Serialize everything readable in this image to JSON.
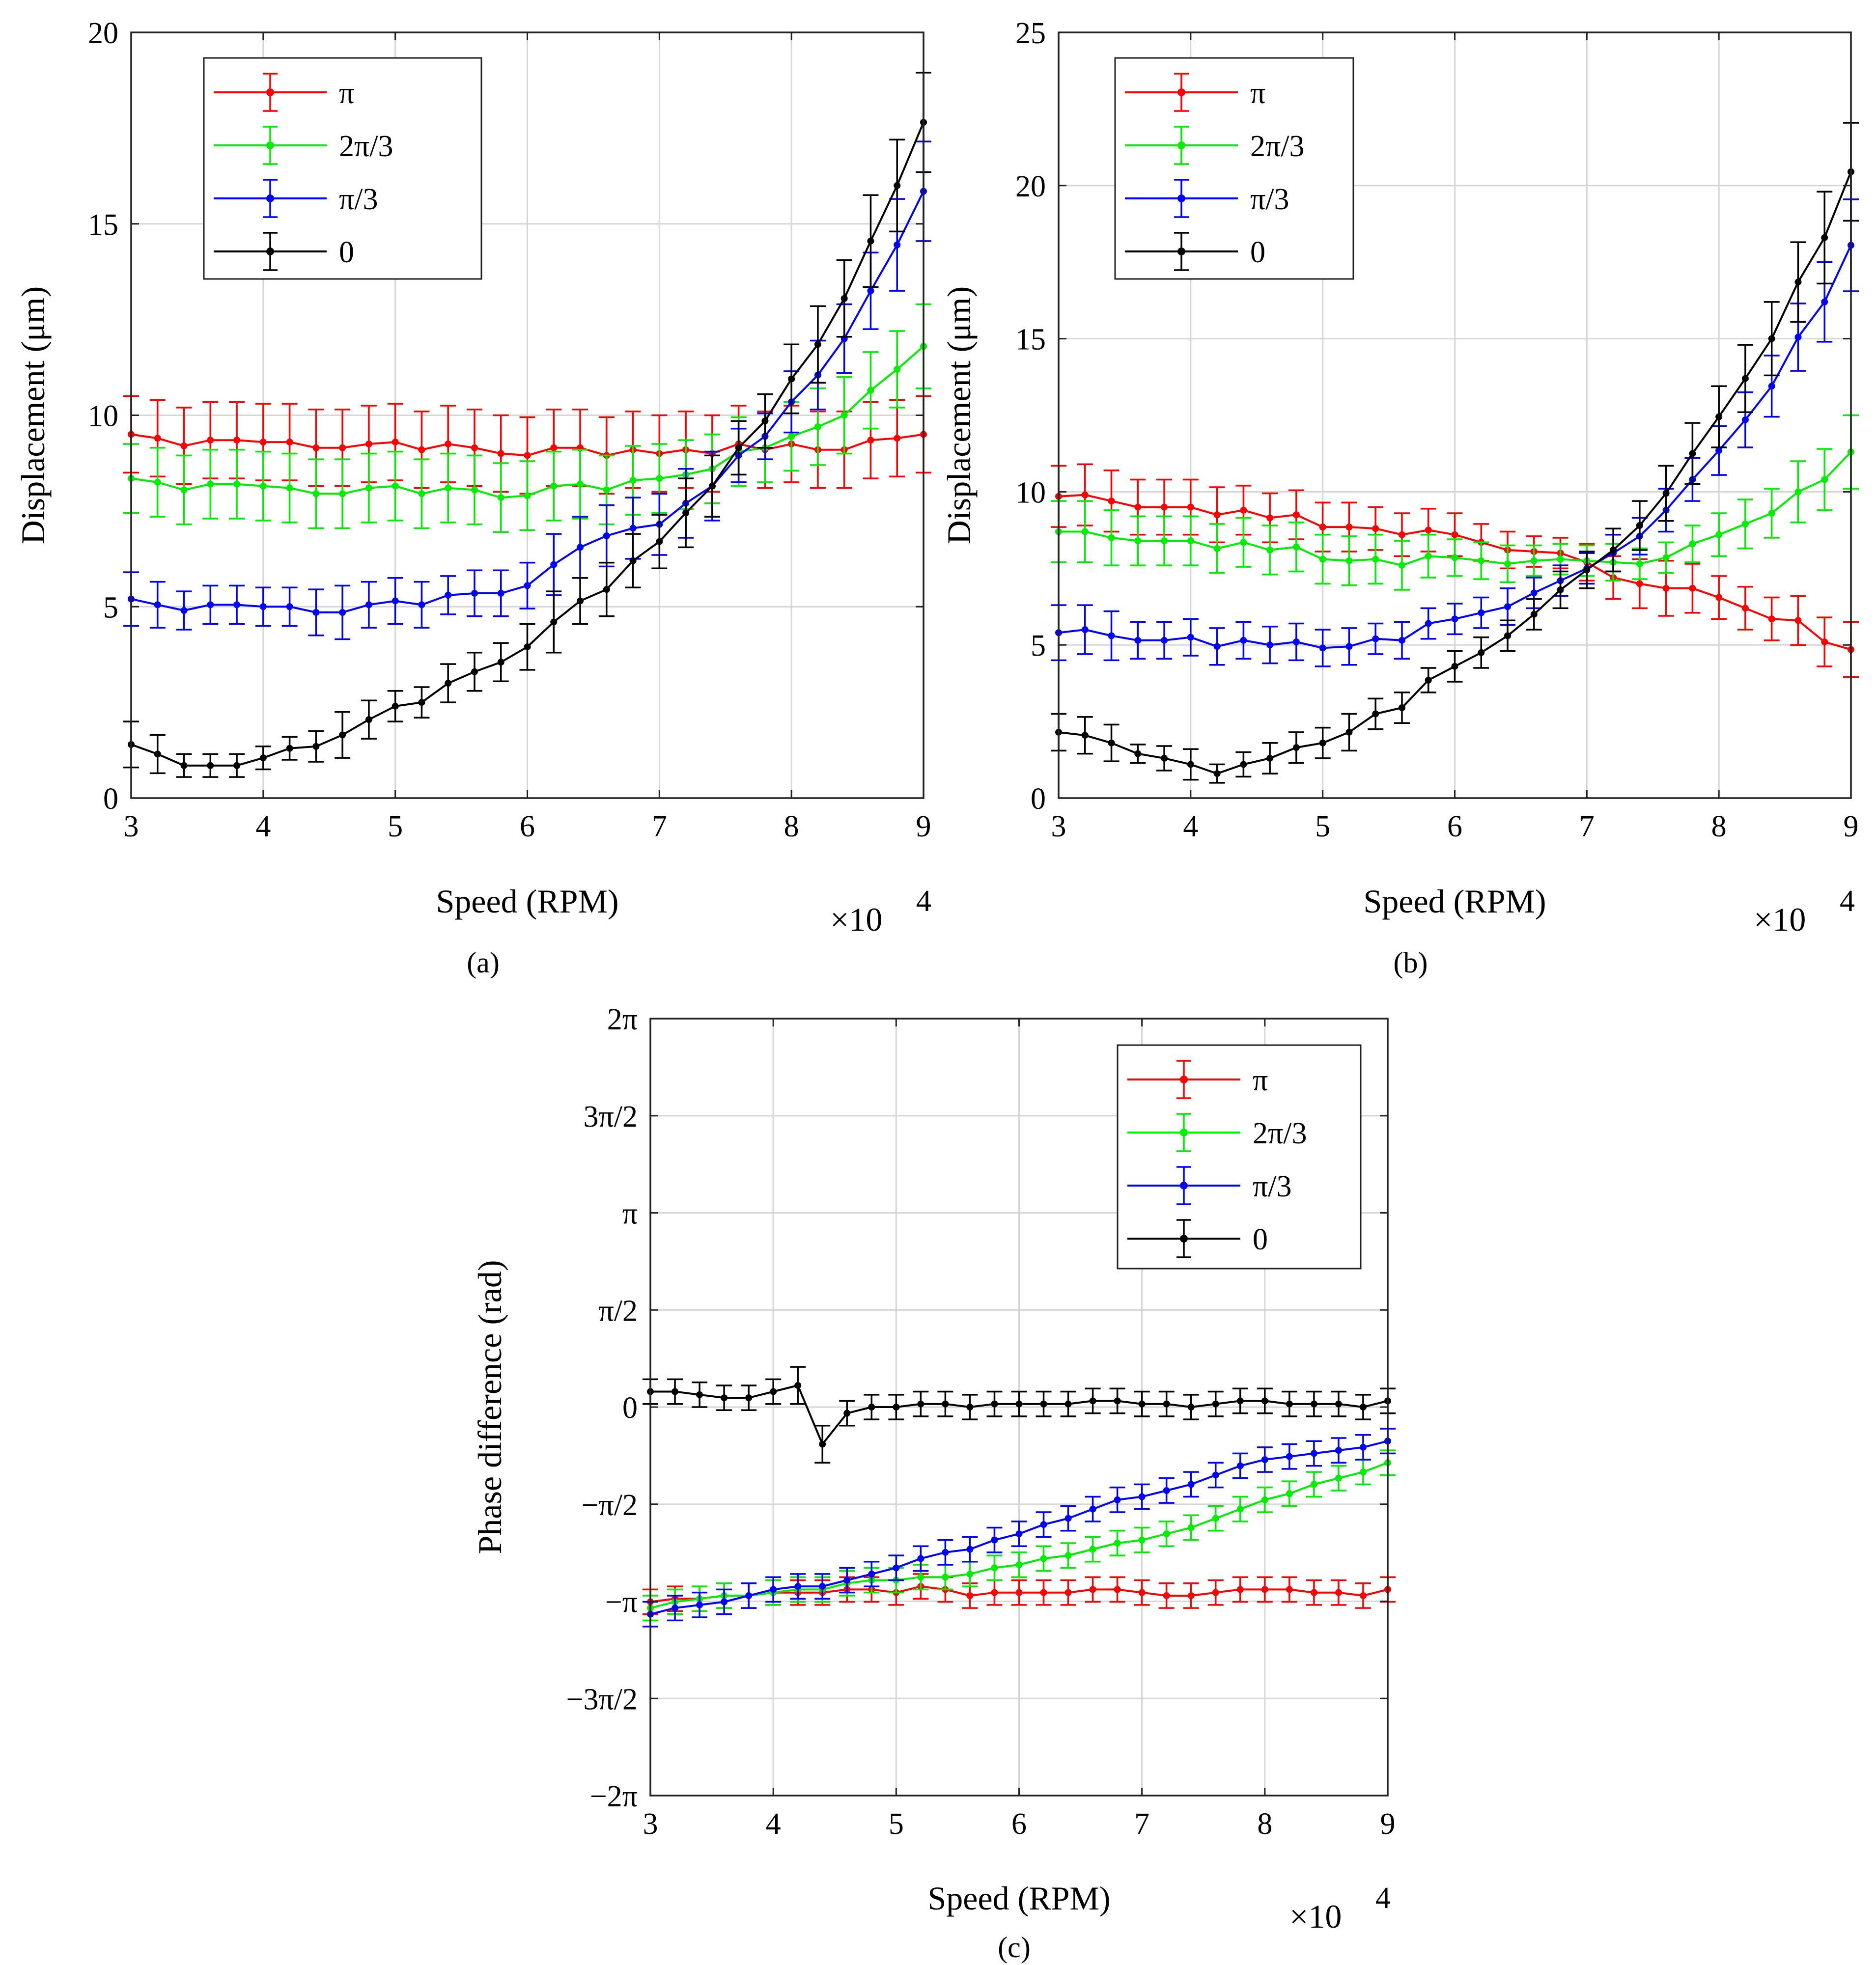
{
  "chart_data": [
    {
      "id": "a",
      "type": "line",
      "panel_label": "(a)",
      "xlabel": "Speed (RPM)",
      "ylabel": "Displacement (μm)",
      "x_multiplier": "×10",
      "x_exponent": "4",
      "xlim": [
        3,
        9
      ],
      "ylim": [
        0,
        20
      ],
      "xticks": [
        3,
        4,
        5,
        6,
        7,
        8,
        9
      ],
      "yticks": [
        0,
        5,
        10,
        15,
        20
      ],
      "ytick_labels": [
        "0",
        "5",
        "10",
        "15",
        "20"
      ],
      "grid": true,
      "legend_position": "top-left",
      "x": [
        3.0,
        3.2,
        3.4,
        3.6,
        3.8,
        4.0,
        4.2,
        4.4,
        4.6,
        4.8,
        5.0,
        5.2,
        5.4,
        5.6,
        5.8,
        6.0,
        6.2,
        6.4,
        6.6,
        6.8,
        7.0,
        7.2,
        7.4,
        7.6,
        7.8,
        8.0,
        8.2,
        8.4,
        8.6,
        8.8,
        9.0
      ],
      "series": [
        {
          "name": "π",
          "color": "#ff0000",
          "values": [
            9.5,
            9.4,
            9.2,
            9.35,
            9.35,
            9.3,
            9.3,
            9.15,
            9.15,
            9.25,
            9.3,
            9.1,
            9.25,
            9.15,
            9.0,
            8.95,
            9.15,
            9.15,
            8.95,
            9.1,
            9.0,
            9.1,
            9.0,
            9.25,
            9.1,
            9.25,
            9.1,
            9.1,
            9.35,
            9.4,
            9.5
          ],
          "err": [
            1.0,
            1.0,
            1.0,
            1.0,
            1.0,
            1.0,
            1.0,
            1.0,
            1.0,
            1.0,
            1.0,
            1.0,
            1.0,
            1.0,
            1.0,
            1.0,
            1.0,
            1.0,
            1.0,
            1.0,
            1.0,
            1.0,
            1.0,
            1.0,
            1.0,
            1.0,
            1.0,
            1.0,
            1.0,
            1.0,
            1.0
          ]
        },
        {
          "name": "2π/3",
          "color": "#00ee00",
          "values": [
            8.35,
            8.25,
            8.05,
            8.2,
            8.2,
            8.15,
            8.1,
            7.95,
            7.95,
            8.1,
            8.15,
            7.95,
            8.1,
            8.05,
            7.85,
            7.9,
            8.15,
            8.2,
            8.05,
            8.3,
            8.35,
            8.45,
            8.6,
            9.05,
            9.15,
            9.45,
            9.7,
            10.0,
            10.65,
            11.2,
            11.8
          ],
          "err": [
            0.9,
            0.9,
            0.9,
            0.9,
            0.9,
            0.9,
            0.9,
            0.9,
            0.9,
            0.9,
            0.9,
            0.9,
            0.9,
            0.9,
            0.9,
            0.9,
            0.9,
            0.9,
            0.9,
            0.9,
            0.9,
            0.9,
            0.9,
            0.9,
            0.9,
            0.9,
            1.0,
            1.0,
            1.0,
            1.0,
            1.1
          ]
        },
        {
          "name": "π/3",
          "color": "#0000ff",
          "values": [
            5.2,
            5.05,
            4.9,
            5.05,
            5.05,
            5.0,
            5.0,
            4.85,
            4.85,
            5.05,
            5.15,
            5.05,
            5.3,
            5.35,
            5.35,
            5.55,
            6.1,
            6.55,
            6.85,
            7.05,
            7.15,
            7.7,
            8.15,
            8.95,
            9.45,
            10.35,
            11.05,
            12.0,
            13.25,
            14.45,
            15.85
          ],
          "err": [
            0.7,
            0.6,
            0.5,
            0.5,
            0.5,
            0.5,
            0.5,
            0.6,
            0.7,
            0.6,
            0.6,
            0.6,
            0.5,
            0.6,
            0.6,
            0.6,
            0.8,
            0.8,
            0.8,
            0.8,
            0.8,
            0.9,
            0.9,
            0.7,
            0.6,
            0.8,
            0.9,
            0.9,
            1.0,
            1.2,
            1.3
          ]
        },
        {
          "name": "0",
          "color": "#000000",
          "values": [
            1.4,
            1.15,
            0.85,
            0.85,
            0.85,
            1.05,
            1.3,
            1.35,
            1.65,
            2.05,
            2.4,
            2.5,
            3.0,
            3.3,
            3.55,
            3.95,
            4.6,
            5.15,
            5.45,
            6.2,
            6.7,
            7.45,
            8.15,
            9.15,
            9.85,
            10.95,
            11.85,
            13.05,
            14.55,
            16.0,
            17.65
          ],
          "err": [
            0.6,
            0.5,
            0.3,
            0.3,
            0.3,
            0.3,
            0.3,
            0.4,
            0.6,
            0.5,
            0.4,
            0.4,
            0.5,
            0.5,
            0.5,
            0.6,
            0.8,
            0.6,
            0.7,
            0.7,
            0.7,
            0.9,
            0.8,
            0.7,
            0.7,
            0.9,
            1.0,
            1.0,
            1.2,
            1.2,
            1.3
          ]
        }
      ]
    },
    {
      "id": "b",
      "type": "line",
      "panel_label": "(b)",
      "xlabel": "Speed (RPM)",
      "ylabel": "Displacement (μm)",
      "x_multiplier": "×10",
      "x_exponent": "4",
      "xlim": [
        3,
        9
      ],
      "ylim": [
        0,
        25
      ],
      "xticks": [
        3,
        4,
        5,
        6,
        7,
        8,
        9
      ],
      "yticks": [
        0,
        5,
        10,
        15,
        20,
        25
      ],
      "ytick_labels": [
        "0",
        "5",
        "10",
        "15",
        "20",
        "25"
      ],
      "grid": true,
      "legend_position": "top-left",
      "x": [
        3.0,
        3.2,
        3.4,
        3.6,
        3.8,
        4.0,
        4.2,
        4.4,
        4.6,
        4.8,
        5.0,
        5.2,
        5.4,
        5.6,
        5.8,
        6.0,
        6.2,
        6.4,
        6.6,
        6.8,
        7.0,
        7.2,
        7.4,
        7.6,
        7.8,
        8.0,
        8.2,
        8.4,
        8.6,
        8.8,
        9.0
      ],
      "series": [
        {
          "name": "π",
          "color": "#ff0000",
          "values": [
            9.85,
            9.9,
            9.7,
            9.5,
            9.5,
            9.5,
            9.25,
            9.4,
            9.15,
            9.25,
            8.85,
            8.85,
            8.8,
            8.6,
            8.75,
            8.6,
            8.35,
            8.1,
            8.05,
            8.0,
            7.7,
            7.2,
            7.0,
            6.85,
            6.85,
            6.55,
            6.2,
            5.85,
            5.8,
            5.1,
            4.85
          ],
          "err": [
            1.0,
            1.0,
            1.0,
            0.9,
            0.9,
            0.9,
            0.9,
            0.8,
            0.8,
            0.8,
            0.8,
            0.8,
            0.7,
            0.7,
            0.7,
            0.7,
            0.6,
            0.6,
            0.5,
            0.5,
            0.6,
            0.7,
            0.8,
            0.9,
            0.8,
            0.7,
            0.7,
            0.7,
            0.8,
            0.8,
            0.9
          ]
        },
        {
          "name": "2π/3",
          "color": "#00ee00",
          "values": [
            8.7,
            8.7,
            8.5,
            8.4,
            8.4,
            8.4,
            8.15,
            8.35,
            8.1,
            8.2,
            7.8,
            7.75,
            7.8,
            7.6,
            7.9,
            7.85,
            7.75,
            7.65,
            7.75,
            7.8,
            7.75,
            7.7,
            7.65,
            7.85,
            8.3,
            8.6,
            8.95,
            9.3,
            10.0,
            10.4,
            11.3
          ],
          "err": [
            1.0,
            1.0,
            0.9,
            0.8,
            0.8,
            0.8,
            0.8,
            0.8,
            0.8,
            0.8,
            0.8,
            0.8,
            0.8,
            0.8,
            0.7,
            0.6,
            0.6,
            0.6,
            0.5,
            0.5,
            0.5,
            0.6,
            0.5,
            0.5,
            0.6,
            0.7,
            0.8,
            0.8,
            1.0,
            1.0,
            1.2
          ]
        },
        {
          "name": "π/3",
          "color": "#0000ff",
          "values": [
            5.4,
            5.5,
            5.3,
            5.15,
            5.15,
            5.25,
            4.95,
            5.15,
            5.0,
            5.1,
            4.9,
            4.95,
            5.2,
            5.15,
            5.7,
            5.85,
            6.05,
            6.25,
            6.7,
            7.1,
            7.5,
            8.0,
            8.55,
            9.4,
            10.4,
            11.35,
            12.35,
            13.45,
            15.05,
            16.2,
            18.05
          ],
          "err": [
            0.9,
            0.8,
            0.8,
            0.6,
            0.6,
            0.6,
            0.6,
            0.6,
            0.6,
            0.6,
            0.6,
            0.6,
            0.5,
            0.6,
            0.5,
            0.5,
            0.5,
            0.6,
            0.5,
            0.5,
            0.5,
            0.6,
            0.6,
            0.7,
            0.7,
            0.8,
            0.9,
            1.0,
            1.1,
            1.3,
            1.5
          ]
        },
        {
          "name": "0",
          "color": "#000000",
          "values": [
            2.15,
            2.05,
            1.8,
            1.45,
            1.3,
            1.1,
            0.8,
            1.1,
            1.3,
            1.65,
            1.8,
            2.15,
            2.75,
            2.95,
            3.85,
            4.3,
            4.75,
            5.3,
            6.0,
            6.8,
            7.45,
            8.1,
            8.9,
            9.95,
            11.25,
            12.45,
            13.7,
            15.0,
            16.85,
            18.3,
            20.45
          ],
          "err": [
            0.6,
            0.6,
            0.6,
            0.3,
            0.4,
            0.5,
            0.3,
            0.4,
            0.5,
            0.5,
            0.5,
            0.6,
            0.5,
            0.5,
            0.4,
            0.5,
            0.5,
            0.5,
            0.5,
            0.6,
            0.6,
            0.7,
            0.8,
            0.9,
            1.0,
            1.0,
            1.1,
            1.2,
            1.3,
            1.5,
            1.6
          ]
        }
      ]
    },
    {
      "id": "c",
      "type": "line",
      "panel_label": "(c)",
      "xlabel": "Speed (RPM)",
      "ylabel": "Phase difference (rad)",
      "x_multiplier": "×10",
      "x_exponent": "4",
      "xlim": [
        3,
        9
      ],
      "ylim": [
        -6.2832,
        6.2832
      ],
      "xticks": [
        3,
        4,
        5,
        6,
        7,
        8,
        9
      ],
      "yticks": [
        -6.2832,
        -4.7124,
        -3.1416,
        -1.5708,
        0,
        1.5708,
        3.1416,
        4.7124,
        6.2832
      ],
      "ytick_labels": [
        "−2π",
        "−3π/2",
        "−π",
        "−π/2",
        "0",
        "π/2",
        "π",
        "3π/2",
        "2π"
      ],
      "grid": true,
      "legend_position": "top-right",
      "x": [
        3.0,
        3.2,
        3.4,
        3.6,
        3.8,
        4.0,
        4.2,
        4.4,
        4.6,
        4.8,
        5.0,
        5.2,
        5.4,
        5.6,
        5.8,
        6.0,
        6.2,
        6.4,
        6.6,
        6.8,
        7.0,
        7.2,
        7.4,
        7.6,
        7.8,
        8.0,
        8.2,
        8.4,
        8.6,
        8.8,
        9.0
      ],
      "series": [
        {
          "name": "π",
          "color": "#ff0000",
          "values": [
            -3.15,
            -3.1,
            -3.1,
            -3.05,
            -3.05,
            -3.0,
            -3.0,
            -3.0,
            -2.95,
            -2.95,
            -3.0,
            -2.9,
            -2.95,
            -3.05,
            -3.0,
            -3.0,
            -3.0,
            -3.0,
            -2.95,
            -2.95,
            -3.0,
            -3.05,
            -3.05,
            -3.0,
            -2.95,
            -2.95,
            -2.95,
            -3.0,
            -3.0,
            -3.05,
            -2.95
          ],
          "err": [
            0.2,
            0.2,
            0.2,
            0.2,
            0.2,
            0.2,
            0.2,
            0.2,
            0.2,
            0.2,
            0.2,
            0.2,
            0.2,
            0.2,
            0.2,
            0.2,
            0.2,
            0.2,
            0.2,
            0.2,
            0.2,
            0.2,
            0.2,
            0.2,
            0.2,
            0.2,
            0.2,
            0.2,
            0.2,
            0.2,
            0.2
          ]
        },
        {
          "name": "2π/3",
          "color": "#00ee00",
          "values": [
            -3.25,
            -3.15,
            -3.1,
            -3.05,
            -3.05,
            -3.0,
            -2.95,
            -2.95,
            -2.85,
            -2.8,
            -2.8,
            -2.75,
            -2.75,
            -2.7,
            -2.6,
            -2.55,
            -2.45,
            -2.4,
            -2.3,
            -2.2,
            -2.15,
            -2.05,
            -1.95,
            -1.8,
            -1.65,
            -1.5,
            -1.4,
            -1.25,
            -1.15,
            -1.05,
            -0.9
          ],
          "err": [
            0.2,
            0.2,
            0.2,
            0.2,
            0.2,
            0.2,
            0.2,
            0.2,
            0.2,
            0.2,
            0.2,
            0.2,
            0.2,
            0.2,
            0.2,
            0.2,
            0.2,
            0.2,
            0.2,
            0.2,
            0.2,
            0.2,
            0.2,
            0.2,
            0.2,
            0.2,
            0.2,
            0.2,
            0.2,
            0.2,
            0.2
          ]
        },
        {
          "name": "π/3",
          "color": "#0000ff",
          "values": [
            -3.35,
            -3.25,
            -3.2,
            -3.15,
            -3.05,
            -2.95,
            -2.9,
            -2.9,
            -2.8,
            -2.7,
            -2.6,
            -2.45,
            -2.35,
            -2.3,
            -2.15,
            -2.05,
            -1.9,
            -1.8,
            -1.65,
            -1.5,
            -1.45,
            -1.35,
            -1.25,
            -1.1,
            -0.95,
            -0.85,
            -0.8,
            -0.75,
            -0.7,
            -0.65,
            -0.55
          ],
          "err": [
            0.2,
            0.2,
            0.2,
            0.2,
            0.2,
            0.2,
            0.2,
            0.2,
            0.2,
            0.2,
            0.2,
            0.2,
            0.2,
            0.2,
            0.2,
            0.2,
            0.2,
            0.2,
            0.2,
            0.2,
            0.2,
            0.2,
            0.2,
            0.2,
            0.2,
            0.2,
            0.2,
            0.2,
            0.2,
            0.2,
            0.2
          ]
        },
        {
          "name": "0",
          "color": "#000000",
          "values": [
            0.25,
            0.25,
            0.2,
            0.15,
            0.15,
            0.25,
            0.35,
            -0.6,
            -0.1,
            0.0,
            0.0,
            0.05,
            0.05,
            0.0,
            0.05,
            0.05,
            0.05,
            0.05,
            0.1,
            0.1,
            0.05,
            0.05,
            0.0,
            0.05,
            0.1,
            0.1,
            0.05,
            0.05,
            0.05,
            0.0,
            0.1
          ],
          "err": [
            0.2,
            0.2,
            0.2,
            0.2,
            0.2,
            0.2,
            0.3,
            0.3,
            0.2,
            0.2,
            0.2,
            0.2,
            0.2,
            0.2,
            0.2,
            0.2,
            0.2,
            0.2,
            0.2,
            0.2,
            0.2,
            0.2,
            0.2,
            0.2,
            0.2,
            0.2,
            0.2,
            0.2,
            0.2,
            0.2,
            0.2
          ]
        }
      ]
    }
  ]
}
